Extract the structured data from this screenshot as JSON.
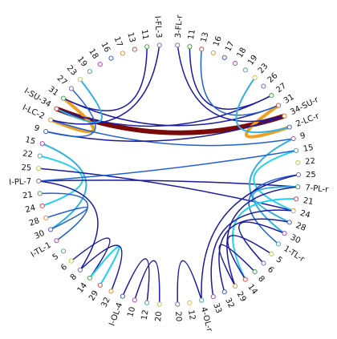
{
  "left_nodes": [
    "I-FL-3",
    "11",
    "13",
    "17",
    "16",
    "18",
    "19",
    "23",
    "27",
    "31",
    "I-SU-34",
    "I-LC-2",
    "9",
    "15",
    "22",
    "25",
    "I-PL-7",
    "21",
    "24",
    "28",
    "30",
    "I-TL-1",
    "5",
    "6",
    "8",
    "14",
    "29",
    "32",
    "I-OL-4",
    "10",
    "12",
    "20"
  ],
  "right_nodes": [
    "3-FL-r",
    "11",
    "13",
    "16",
    "17",
    "18",
    "19",
    "23",
    "26",
    "27",
    "31",
    "34-SU-r",
    "2-LC-r",
    "9",
    "15",
    "22",
    "25",
    "7-PL-r",
    "21",
    "24",
    "28",
    "30",
    "1-TL-r",
    "5",
    "6",
    "8",
    "14",
    "29",
    "32",
    "33",
    "4-OL-r",
    "12",
    "20"
  ]
}
